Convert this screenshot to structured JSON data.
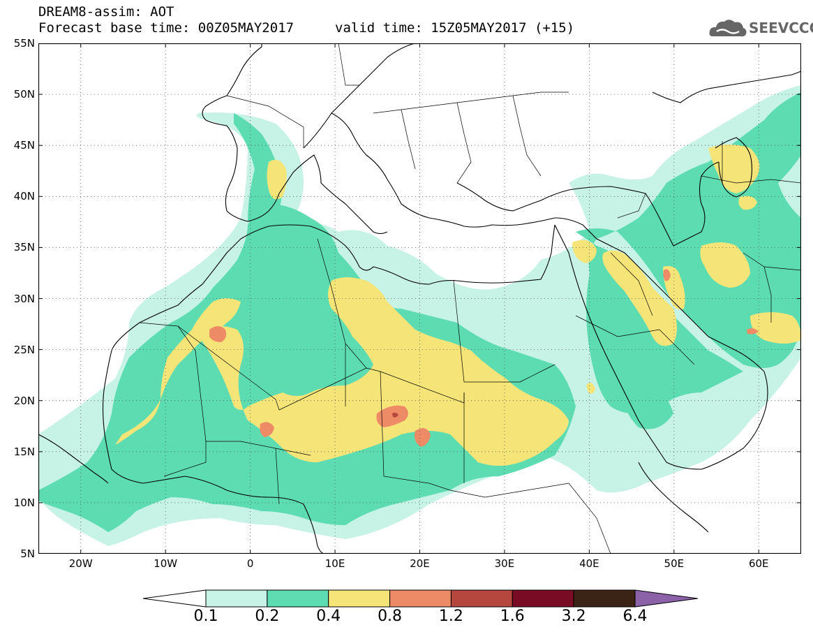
{
  "header": {
    "title": "DREAM8-assim: AOT",
    "forecast": "Forecast base time: 00Z05MAY2017",
    "valid": "valid time: 15Z05MAY2017 (+15)"
  },
  "logo": {
    "text": "SEEVCCC",
    "icon": "cloud-icon",
    "color": "#666666"
  },
  "map": {
    "lat_labels": [
      "55N",
      "50N",
      "45N",
      "40N",
      "35N",
      "30N",
      "25N",
      "20N",
      "15N",
      "10N",
      "5N"
    ],
    "lon_labels": [
      "20W",
      "10W",
      "0",
      "10E",
      "20E",
      "30E",
      "40E",
      "50E",
      "60E"
    ],
    "lat_range": [
      5,
      55
    ],
    "lon_range": [
      -25,
      65
    ],
    "grid": "dotted"
  },
  "legend": {
    "levels": [
      "0.1",
      "0.2",
      "0.4",
      "0.8",
      "1.2",
      "1.6",
      "3.2",
      "6.4"
    ],
    "colors": [
      "#ffffff",
      "#c7f2e6",
      "#5ddcb1",
      "#f5e579",
      "#ee8b67",
      "#b5473f",
      "#7a0b24",
      "#3b2415",
      "#8b62a8"
    ]
  }
}
